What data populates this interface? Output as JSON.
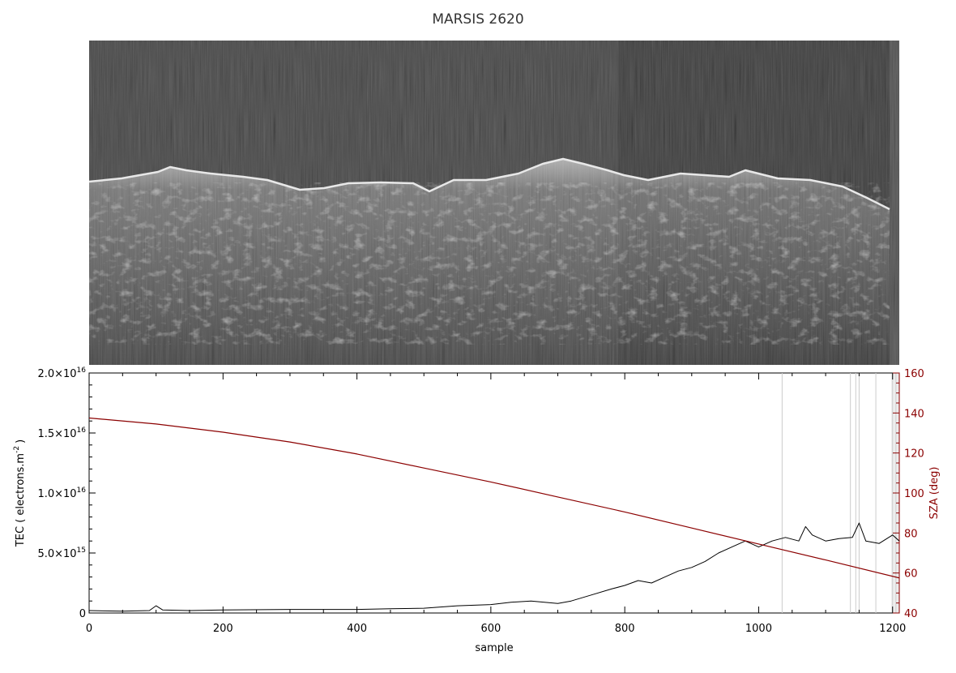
{
  "colors": {
    "tec_line": "#000000",
    "sza_line": "#8b0000",
    "sza_axis": "#8b0000",
    "grid_vertical": "#cccccc",
    "radargram_background": "#1e1e1e"
  },
  "chart_data": [
    {
      "type": "heatmap",
      "title": "MARSIS 2620",
      "description_of_content": "radargram",
      "x_range": [
        0,
        1210
      ]
    },
    {
      "type": "line",
      "title": "",
      "xlabel": "sample",
      "ylabel_left": "TEC ( electrons.m",
      "ylabel_left_exponent": "-2",
      "ylabel_left_tail": ")",
      "ylabel_right": "SZA (deg)",
      "xlim": [
        0,
        1210
      ],
      "ylim_left": [
        0,
        2e+16
      ],
      "ylim_right": [
        40,
        160
      ],
      "x_ticks": [
        "0",
        "200",
        "400",
        "600",
        "800",
        "1000",
        "1200"
      ],
      "y_ticks_left": [
        {
          "value": 0,
          "mantissa": "0",
          "exponent": ""
        },
        {
          "value": 5000000000000000.0,
          "mantissa": "5.0×10",
          "exponent": "15"
        },
        {
          "value": 1e+16,
          "mantissa": "1.0×10",
          "exponent": "16"
        },
        {
          "value": 1.5e+16,
          "mantissa": "1.5×10",
          "exponent": "16"
        },
        {
          "value": 2e+16,
          "mantissa": "2.0×10",
          "exponent": "16"
        }
      ],
      "y_ticks_right": [
        "40",
        "60",
        "80",
        "100",
        "120",
        "140",
        "160"
      ],
      "vertical_markers_x": [
        1035,
        1137,
        1145,
        1150,
        1175,
        1200,
        1205
      ],
      "series": [
        {
          "axis": "left",
          "x": [
            0,
            50,
            90,
            100,
            110,
            150,
            200,
            300,
            400,
            450,
            500,
            550,
            600,
            630,
            660,
            700,
            720,
            750,
            780,
            800,
            820,
            840,
            860,
            880,
            900,
            920,
            940,
            960,
            980,
            1000,
            1020,
            1040,
            1060,
            1070,
            1080,
            1100,
            1120,
            1140,
            1150,
            1160,
            1180,
            1200,
            1210
          ],
          "y": [
            200000000000000.0,
            150000000000000.0,
            200000000000000.0,
            600000000000000.0,
            250000000000000.0,
            200000000000000.0,
            250000000000000.0,
            300000000000000.0,
            300000000000000.0,
            350000000000000.0,
            400000000000000.0,
            600000000000000.0,
            700000000000000.0,
            900000000000000.0,
            1000000000000000.0,
            800000000000000.0,
            1000000000000000.0,
            1500000000000000.0,
            2000000000000000.0,
            2300000000000000.0,
            2700000000000000.0,
            2500000000000000.0,
            3000000000000000.0,
            3500000000000000.0,
            3800000000000000.0,
            4300000000000000.0,
            5000000000000000.0,
            5500000000000000.0,
            6000000000000000.0,
            5500000000000000.0,
            6000000000000000.0,
            6300000000000000.0,
            6000000000000000.0,
            7200000000000000.0,
            6500000000000000.0,
            6000000000000000.0,
            6200000000000000.0,
            6300000000000000.0,
            7500000000000000.0,
            6000000000000000.0,
            5800000000000000.0,
            6500000000000000.0,
            6000000000000000.0
          ]
        },
        {
          "axis": "right",
          "x": [
            0,
            100,
            200,
            300,
            400,
            500,
            600,
            700,
            800,
            900,
            1000,
            1100,
            1210
          ],
          "y": [
            137.5,
            134.5,
            130.4,
            125.5,
            119.5,
            112.5,
            105.5,
            98.0,
            90.5,
            82.5,
            74.5,
            66.5,
            57.5
          ]
        }
      ]
    }
  ]
}
